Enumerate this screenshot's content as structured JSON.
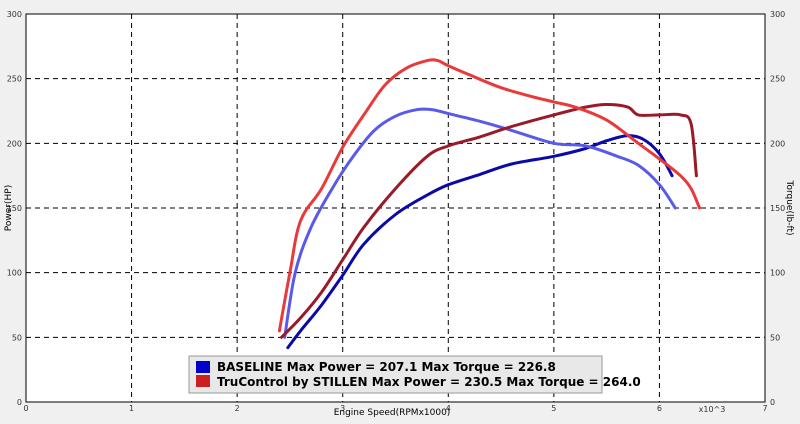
{
  "chart_data": {
    "type": "line",
    "xlabel": "Engine Speed(RPMx1000)",
    "x_multiplier_label": "x10^3",
    "ylabel_left": "Power(HP)",
    "ylabel_right": "Torque(lb-ft)",
    "xlim": [
      0,
      7
    ],
    "ylim": [
      0,
      300
    ],
    "x_ticks": [
      "0",
      "1",
      "2",
      "3",
      "4",
      "5",
      "6",
      "7"
    ],
    "y_ticks": [
      "0",
      "50",
      "100",
      "150",
      "200",
      "250",
      "300"
    ],
    "grid": true,
    "legend": {
      "position": "bottom",
      "entries": [
        {
          "label": "BASELINE Max Power = 207.1 Max Torque = 226.8",
          "color": "#0000cc"
        },
        {
          "label": "TruControl by STILLEN Max Power = 230.5 Max Torque = 264.0",
          "color": "#cc2020"
        }
      ]
    },
    "series": [
      {
        "color": "#0a0aa8",
        "x": [
          2.48,
          2.6,
          2.8,
          3.0,
          3.2,
          3.5,
          3.8,
          4.0,
          4.3,
          4.6,
          5.0,
          5.3,
          5.5,
          5.7,
          5.85,
          6.0,
          6.12
        ],
        "y": [
          42,
          55,
          75,
          98,
          122,
          145,
          160,
          168,
          176,
          184,
          190,
          196,
          202,
          206,
          203,
          192,
          175
        ]
      },
      {
        "color": "#5a5aea",
        "x": [
          2.45,
          2.55,
          2.7,
          2.9,
          3.1,
          3.3,
          3.5,
          3.7,
          3.85,
          4.0,
          4.3,
          4.6,
          5.0,
          5.3,
          5.6,
          5.8,
          6.0,
          6.15
        ],
        "y": [
          50,
          100,
          135,
          165,
          190,
          210,
          221,
          226,
          226,
          223,
          217,
          210,
          200,
          198,
          190,
          183,
          168,
          150
        ]
      },
      {
        "color": "#9a1a28",
        "x": [
          2.42,
          2.6,
          2.8,
          3.0,
          3.2,
          3.5,
          3.8,
          4.0,
          4.3,
          4.6,
          5.0,
          5.3,
          5.5,
          5.7,
          5.8,
          6.0,
          6.2,
          6.3,
          6.35
        ],
        "y": [
          50,
          65,
          85,
          110,
          135,
          165,
          190,
          198,
          205,
          213,
          222,
          228,
          230,
          228,
          222,
          222,
          222,
          215,
          175
        ]
      },
      {
        "color": "#e83a3a",
        "x": [
          2.4,
          2.5,
          2.6,
          2.8,
          3.0,
          3.2,
          3.4,
          3.6,
          3.8,
          3.9,
          4.0,
          4.2,
          4.5,
          4.8,
          5.0,
          5.2,
          5.5,
          5.8,
          6.0,
          6.2,
          6.3,
          6.38
        ],
        "y": [
          55,
          100,
          140,
          165,
          197,
          222,
          245,
          258,
          264,
          264,
          260,
          253,
          243,
          236,
          232,
          228,
          218,
          200,
          188,
          175,
          165,
          150
        ]
      }
    ]
  }
}
